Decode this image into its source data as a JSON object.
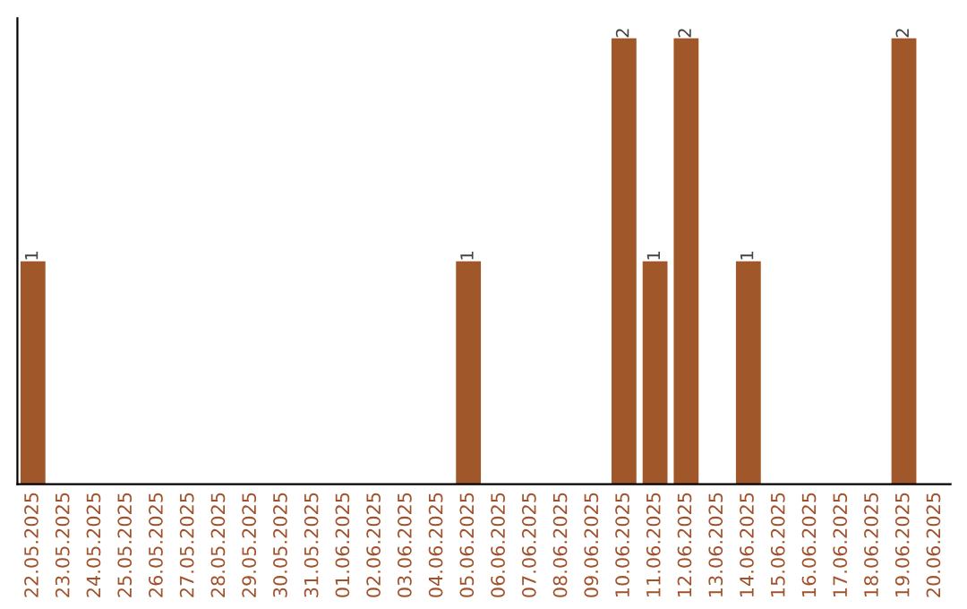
{
  "chart_data": {
    "type": "bar",
    "categories": [
      "22.05.2025",
      "23.05.2025",
      "24.05.2025",
      "25.05.2025",
      "26.05.2025",
      "27.05.2025",
      "28.05.2025",
      "29.05.2025",
      "30.05.2025",
      "31.05.2025",
      "01.06.2025",
      "02.06.2025",
      "03.06.2025",
      "04.06.2025",
      "05.06.2025",
      "06.06.2025",
      "07.06.2025",
      "08.06.2025",
      "09.06.2025",
      "10.06.2025",
      "11.06.2025",
      "12.06.2025",
      "13.06.2025",
      "14.06.2025",
      "15.06.2025",
      "16.06.2025",
      "17.06.2025",
      "18.06.2025",
      "19.06.2025",
      "20.06.2025"
    ],
    "values": [
      1,
      0,
      0,
      0,
      0,
      0,
      0,
      0,
      0,
      0,
      0,
      0,
      0,
      0,
      1,
      0,
      0,
      0,
      0,
      2,
      1,
      2,
      0,
      1,
      0,
      0,
      0,
      0,
      2,
      0
    ],
    "value_labels": [
      "1",
      null,
      null,
      null,
      null,
      null,
      null,
      null,
      null,
      null,
      null,
      null,
      null,
      null,
      "1",
      null,
      null,
      null,
      null,
      "2",
      "1",
      "2",
      null,
      "1",
      null,
      null,
      null,
      null,
      "2",
      null
    ],
    "color": "#a0582a",
    "tick_labels": "x",
    "grid": false,
    "legend": false
  }
}
